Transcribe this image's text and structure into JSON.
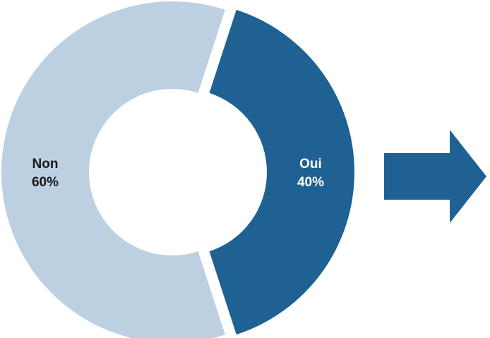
{
  "chart_data": {
    "type": "pie",
    "donut": true,
    "title": "",
    "categories": [
      "Oui",
      "Non"
    ],
    "values": [
      40,
      60
    ],
    "value_labels": [
      "40%",
      "60%"
    ],
    "colors": [
      "#1f6192",
      "#bcd0e1"
    ],
    "label_colors": [
      "#ffffff",
      "#1a1a1a"
    ],
    "exploded": true,
    "legend": "none"
  },
  "arrow": {
    "color": "#1f6192",
    "direction": "right",
    "icon": "arrow-right-icon"
  }
}
